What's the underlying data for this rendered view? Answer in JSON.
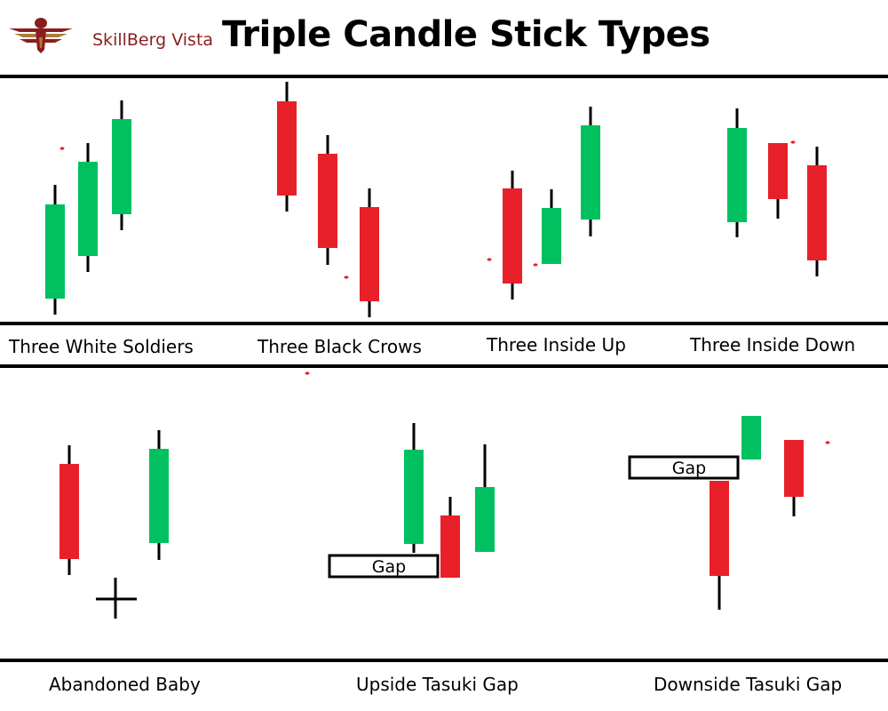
{
  "brand": {
    "name": "SkillBerg Vista",
    "accent": "#8a1e1e"
  },
  "title": "Triple Candle Stick Types",
  "colors": {
    "bullish": "#00c060",
    "bearish": "#e8202a",
    "wick": "#000000"
  },
  "patterns": [
    {
      "label": "Three White Soldiers"
    },
    {
      "label": "Three Black Crows"
    },
    {
      "label": "Three Inside Up"
    },
    {
      "label": "Three Inside Down"
    },
    {
      "label": "Abandoned Baby"
    },
    {
      "label": "Upside Tasuki Gap"
    },
    {
      "label": "Downside Tasuki Gap"
    }
  ],
  "gap_label": "Gap"
}
